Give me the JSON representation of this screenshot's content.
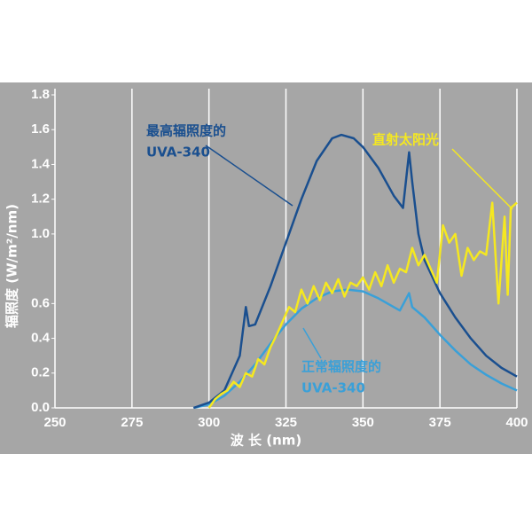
{
  "chart_data": {
    "type": "line",
    "xlabel": "波 长 (nm)",
    "ylabel": "辐照度 (W/m²/nm)",
    "xlim": [
      250,
      400
    ],
    "xticks": [
      250,
      275,
      300,
      325,
      350,
      375,
      400
    ],
    "ylim": [
      0,
      1.8
    ],
    "yticks": [
      {
        "value": 0,
        "label": "0.0"
      },
      0.2,
      0.4,
      0.6,
      {
        "value": 1,
        "label": "1.0"
      },
      1.2,
      1.4,
      1.6,
      1.8
    ],
    "grid": "x",
    "series": [
      {
        "color": "#1a4f8f",
        "x": [
          295,
          300,
          305,
          310,
          312,
          313,
          315,
          320,
          325,
          330,
          335,
          340,
          343,
          347,
          350,
          355,
          360,
          363,
          365,
          366,
          368,
          370,
          375,
          380,
          385,
          390,
          395,
          400
        ],
        "values": [
          0,
          0.03,
          0.1,
          0.3,
          0.58,
          0.47,
          0.48,
          0.7,
          0.95,
          1.2,
          1.42,
          1.55,
          1.57,
          1.55,
          1.5,
          1.38,
          1.22,
          1.15,
          1.47,
          1.3,
          1.0,
          0.85,
          0.66,
          0.52,
          0.4,
          0.3,
          0.23,
          0.18
        ]
      },
      {
        "color": "#3aa0d8",
        "x": [
          295,
          300,
          305,
          310,
          315,
          320,
          325,
          330,
          335,
          340,
          345,
          350,
          355,
          360,
          362,
          365,
          366,
          370,
          375,
          380,
          385,
          390,
          395,
          400
        ],
        "values": [
          0,
          0.02,
          0.07,
          0.15,
          0.25,
          0.37,
          0.48,
          0.57,
          0.63,
          0.67,
          0.68,
          0.67,
          0.63,
          0.58,
          0.56,
          0.66,
          0.58,
          0.52,
          0.42,
          0.33,
          0.25,
          0.19,
          0.14,
          0.1
        ]
      },
      {
        "color": "#f5e820",
        "x": [
          300,
          302,
          304,
          306,
          308,
          310,
          312,
          314,
          316,
          318,
          320,
          322,
          324,
          326,
          328,
          330,
          332,
          334,
          336,
          338,
          340,
          342,
          344,
          346,
          348,
          350,
          352,
          354,
          356,
          358,
          360,
          362,
          364,
          366,
          368,
          370,
          372,
          374,
          376,
          378,
          380,
          382,
          384,
          386,
          388,
          390,
          392,
          394,
          396,
          397,
          398,
          400
        ],
        "values": [
          0,
          0.05,
          0.08,
          0.1,
          0.15,
          0.12,
          0.2,
          0.18,
          0.28,
          0.25,
          0.35,
          0.42,
          0.5,
          0.58,
          0.55,
          0.68,
          0.6,
          0.7,
          0.62,
          0.72,
          0.66,
          0.74,
          0.64,
          0.72,
          0.7,
          0.75,
          0.68,
          0.78,
          0.7,
          0.82,
          0.72,
          0.8,
          0.78,
          0.92,
          0.82,
          0.88,
          0.8,
          0.72,
          1.05,
          0.95,
          1.0,
          0.76,
          0.92,
          0.85,
          0.9,
          0.88,
          1.18,
          0.6,
          1.1,
          0.65,
          1.15,
          1.18
        ]
      }
    ],
    "annotations": [
      {
        "lines": [
          "最高辐照度的",
          "UVA-340"
        ],
        "color": "#1a4f8f"
      },
      {
        "lines": [
          "直射太阳光"
        ],
        "color": "#f5e820"
      },
      {
        "lines": [
          "正常辐照度的",
          "UVA-340"
        ],
        "color": "#3aa0d8"
      }
    ]
  }
}
